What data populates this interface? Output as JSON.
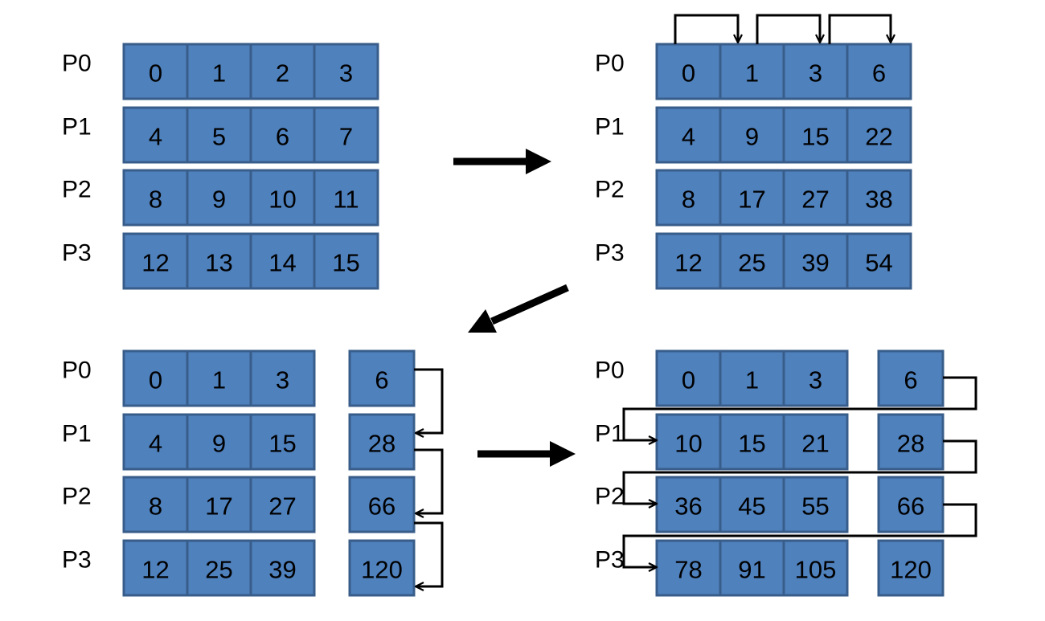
{
  "panels": [
    {
      "id": "initial",
      "rows": [
        {
          "label": "P0",
          "cells": [
            "0",
            "1",
            "2",
            "3"
          ]
        },
        {
          "label": "P1",
          "cells": [
            "4",
            "5",
            "6",
            "7"
          ]
        },
        {
          "label": "P2",
          "cells": [
            "8",
            "9",
            "10",
            "11"
          ]
        },
        {
          "label": "P3",
          "cells": [
            "12",
            "13",
            "14",
            "15"
          ]
        }
      ]
    },
    {
      "id": "local-scan",
      "rows": [
        {
          "label": "P0",
          "cells": [
            "0",
            "1",
            "3",
            "6"
          ]
        },
        {
          "label": "P1",
          "cells": [
            "4",
            "9",
            "15",
            "22"
          ]
        },
        {
          "label": "P2",
          "cells": [
            "8",
            "17",
            "27",
            "38"
          ]
        },
        {
          "label": "P3",
          "cells": [
            "12",
            "25",
            "39",
            "54"
          ]
        }
      ]
    },
    {
      "id": "totals-scan",
      "rows": [
        {
          "label": "P0",
          "cells": [
            "0",
            "1",
            "3"
          ],
          "total": "6"
        },
        {
          "label": "P1",
          "cells": [
            "4",
            "9",
            "15"
          ],
          "total": "28"
        },
        {
          "label": "P2",
          "cells": [
            "8",
            "17",
            "27"
          ],
          "total": "66"
        },
        {
          "label": "P3",
          "cells": [
            "12",
            "25",
            "39"
          ],
          "total": "120"
        }
      ]
    },
    {
      "id": "final",
      "rows": [
        {
          "label": "P0",
          "cells": [
            "0",
            "1",
            "3"
          ],
          "total": "6"
        },
        {
          "label": "P1",
          "cells": [
            "10",
            "15",
            "21"
          ],
          "total": "28"
        },
        {
          "label": "P2",
          "cells": [
            "36",
            "45",
            "55"
          ],
          "total": "66"
        },
        {
          "label": "P3",
          "cells": [
            "78",
            "91",
            "105"
          ],
          "total": "120"
        }
      ]
    }
  ]
}
